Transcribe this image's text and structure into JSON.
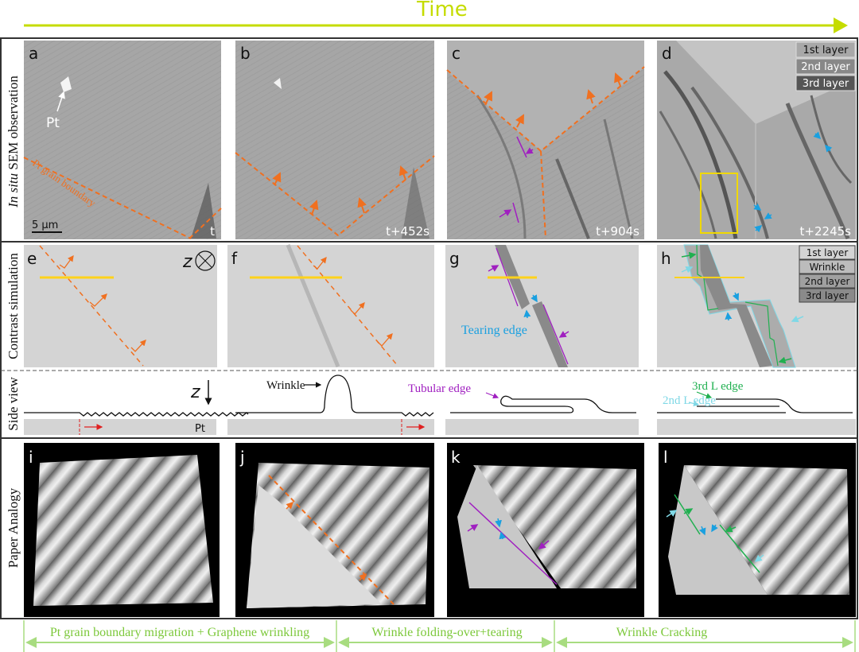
{
  "title": "Time",
  "colors": {
    "time_arrow": "#c5dc00",
    "grain_boundary": "#f07020",
    "line_profile": "#ffd21a",
    "tubular": "#a020c0",
    "tearing": "#1aa0e0",
    "third_layer_edge": "#20b050",
    "second_layer_edge": "#80d8e6",
    "stage_text": "#7cc83a",
    "stage_line": "#a8dc80",
    "roi_box": "#f0d800"
  },
  "row_labels": {
    "sem_italic": "In situ",
    "sem_rest": " SEM observation",
    "contrast": "Contrast simulation",
    "side": "Side view",
    "paper": "Paper Analogy"
  },
  "sem": {
    "a": {
      "letter": "a",
      "time": "t",
      "pt_label": "Pt",
      "grain_boundary_label": "Pt grain boundary",
      "scale_bar": "5 µm"
    },
    "b": {
      "letter": "b",
      "time": "t+452s"
    },
    "c": {
      "letter": "c",
      "time": "t+904s"
    },
    "d": {
      "letter": "d",
      "time": "t+2245s",
      "legend": [
        "1st layer",
        "2nd layer",
        "3rd layer"
      ]
    }
  },
  "contrast": {
    "e": {
      "letter": "e",
      "axis": "z"
    },
    "f": {
      "letter": "f"
    },
    "g": {
      "letter": "g",
      "tearing_label": "Tearing edge"
    },
    "h": {
      "letter": "h",
      "legend": [
        "1st layer",
        "Wrinkle",
        "2nd layer",
        "3rd layer"
      ]
    }
  },
  "side_view": {
    "axis": "z",
    "pt_label": "Pt",
    "wrinkle_label": "Wrinkle",
    "tubular_label": "Tubular edge",
    "third_layer_label": "3rd L edge",
    "second_layer_label": "2nd L edge"
  },
  "paper": {
    "i": "i",
    "j": "j",
    "k": "k",
    "l": "l"
  },
  "stages": [
    "Pt grain boundary migration + Graphene wrinkling",
    "Wrinkle folding-over+tearing",
    "Wrinkle Cracking"
  ]
}
